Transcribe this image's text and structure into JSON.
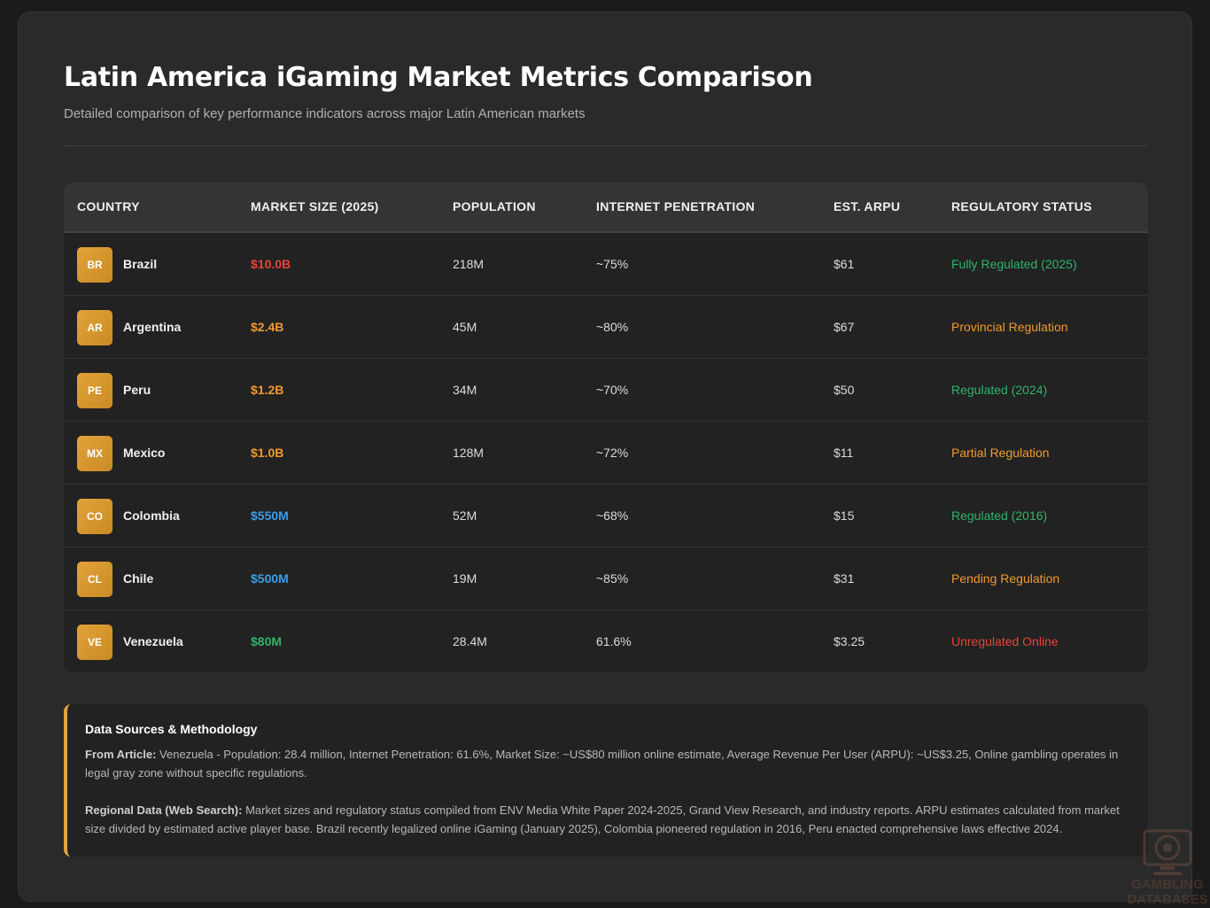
{
  "header": {
    "title": "Latin America iGaming Market Metrics Comparison",
    "subtitle": "Detailed comparison of key performance indicators across major Latin American markets"
  },
  "table": {
    "columns": [
      "COUNTRY",
      "MARKET SIZE (2025)",
      "POPULATION",
      "INTERNET PENETRATION",
      "EST. ARPU",
      "REGULATORY STATUS"
    ],
    "rows": [
      {
        "code": "BR",
        "country": "Brazil",
        "market_size": "$10.0B",
        "market_color": "#e8433a",
        "population": "218M",
        "internet": "~75%",
        "arpu": "$61",
        "status": "Fully Regulated (2025)",
        "status_color": "#2fb36b"
      },
      {
        "code": "AR",
        "country": "Argentina",
        "market_size": "$2.4B",
        "market_color": "#f29a2e",
        "population": "45M",
        "internet": "~80%",
        "arpu": "$67",
        "status": "Provincial Regulation",
        "status_color": "#f29a2e"
      },
      {
        "code": "PE",
        "country": "Peru",
        "market_size": "$1.2B",
        "market_color": "#f29a2e",
        "population": "34M",
        "internet": "~70%",
        "arpu": "$50",
        "status": "Regulated (2024)",
        "status_color": "#2fb36b"
      },
      {
        "code": "MX",
        "country": "Mexico",
        "market_size": "$1.0B",
        "market_color": "#f29a2e",
        "population": "128M",
        "internet": "~72%",
        "arpu": "$11",
        "status": "Partial Regulation",
        "status_color": "#f29a2e"
      },
      {
        "code": "CO",
        "country": "Colombia",
        "market_size": "$550M",
        "market_color": "#3b9ee8",
        "population": "52M",
        "internet": "~68%",
        "arpu": "$15",
        "status": "Regulated (2016)",
        "status_color": "#2fb36b"
      },
      {
        "code": "CL",
        "country": "Chile",
        "market_size": "$500M",
        "market_color": "#3b9ee8",
        "population": "19M",
        "internet": "~85%",
        "arpu": "$31",
        "status": "Pending Regulation",
        "status_color": "#f29a2e"
      },
      {
        "code": "VE",
        "country": "Venezuela",
        "market_size": "$80M",
        "market_color": "#2fb36b",
        "population": "28.4M",
        "internet": "61.6%",
        "arpu": "$3.25",
        "status": "Unregulated Online",
        "status_color": "#e8433a"
      }
    ]
  },
  "notes": {
    "title": "Data Sources & Methodology",
    "article_label": "From Article:",
    "article_text": " Venezuela - Population: 28.4 million, Internet Penetration: 61.6%, Market Size: ~US$80 million online estimate, Average Revenue Per User (ARPU): ~US$3.25, Online gambling operates in legal gray zone without specific regulations.",
    "regional_label": "Regional Data (Web Search):",
    "regional_text": " Market sizes and regulatory status compiled from ENV Media White Paper 2024-2025, Grand View Research, and industry reports. ARPU estimates calculated from market size divided by estimated active player base. Brazil recently legalized online iGaming (January 2025), Colombia pioneered regulation in 2016, Peru enacted comprehensive laws effective 2024."
  },
  "watermark": {
    "line1": "GAMBLING",
    "line2": "DATABASES",
    "icon": "casino-chip-monitor-icon"
  }
}
